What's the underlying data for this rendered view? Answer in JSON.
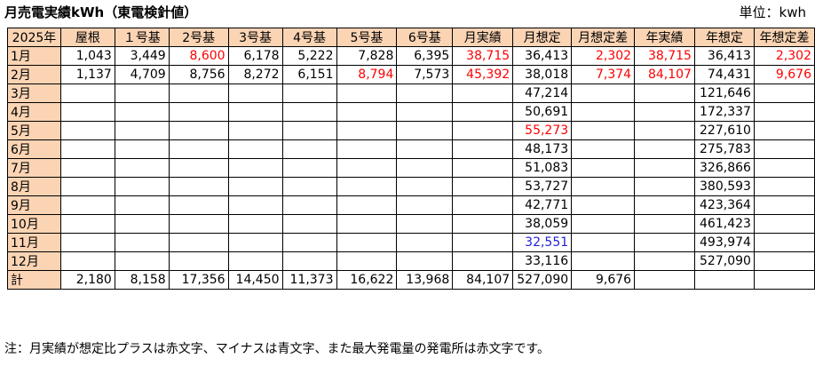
{
  "title": "月売電実績kWh（東電検針値）",
  "unit": "単位：kwh",
  "colors": {
    "header_bg": "#fbd4b4",
    "highlight_red": "#ff0000",
    "highlight_blue": "#1f1fd6"
  },
  "headers": [
    "2025年",
    "屋根",
    "１号基",
    "2号基",
    "3号基",
    "4号基",
    "5号基",
    "6号基",
    "月実績",
    "月想定",
    "月想定差",
    "年実績",
    "年想定",
    "年想定差"
  ],
  "rows": [
    {
      "label": "1月",
      "cells": [
        "1,043",
        "3,449",
        "8,600",
        "6,178",
        "5,222",
        "7,828",
        "6,395",
        "38,715",
        "36,413",
        "2,302",
        "38,715",
        "36,413",
        "2,302"
      ]
    },
    {
      "label": "2月",
      "cells": [
        "1,137",
        "4,709",
        "8,756",
        "8,272",
        "6,151",
        "8,794",
        "7,573",
        "45,392",
        "38,018",
        "7,374",
        "84,107",
        "74,431",
        "9,676"
      ]
    },
    {
      "label": "3月",
      "cells": [
        "",
        "",
        "",
        "",
        "",
        "",
        "",
        "",
        "47,214",
        "",
        "",
        "121,646",
        ""
      ]
    },
    {
      "label": "4月",
      "cells": [
        "",
        "",
        "",
        "",
        "",
        "",
        "",
        "",
        "50,691",
        "",
        "",
        "172,337",
        ""
      ]
    },
    {
      "label": "5月",
      "cells": [
        "",
        "",
        "",
        "",
        "",
        "",
        "",
        "",
        "55,273",
        "",
        "",
        "227,610",
        ""
      ]
    },
    {
      "label": "6月",
      "cells": [
        "",
        "",
        "",
        "",
        "",
        "",
        "",
        "",
        "48,173",
        "",
        "",
        "275,783",
        ""
      ]
    },
    {
      "label": "7月",
      "cells": [
        "",
        "",
        "",
        "",
        "",
        "",
        "",
        "",
        "51,083",
        "",
        "",
        "326,866",
        ""
      ]
    },
    {
      "label": "8月",
      "cells": [
        "",
        "",
        "",
        "",
        "",
        "",
        "",
        "",
        "53,727",
        "",
        "",
        "380,593",
        ""
      ]
    },
    {
      "label": "9月",
      "cells": [
        "",
        "",
        "",
        "",
        "",
        "",
        "",
        "",
        "42,771",
        "",
        "",
        "423,364",
        ""
      ]
    },
    {
      "label": "10月",
      "cells": [
        "",
        "",
        "",
        "",
        "",
        "",
        "",
        "",
        "38,059",
        "",
        "",
        "461,423",
        ""
      ]
    },
    {
      "label": "11月",
      "cells": [
        "",
        "",
        "",
        "",
        "",
        "",
        "",
        "",
        "32,551",
        "",
        "",
        "493,974",
        ""
      ]
    },
    {
      "label": "12月",
      "cells": [
        "",
        "",
        "",
        "",
        "",
        "",
        "",
        "",
        "33,116",
        "",
        "",
        "527,090",
        ""
      ]
    },
    {
      "label": "計",
      "cells": [
        "2,180",
        "8,158",
        "17,356",
        "14,450",
        "11,373",
        "16,622",
        "13,968",
        "84,107",
        "527,090",
        "9,676",
        "",
        "",
        ""
      ]
    }
  ],
  "note": "注：月実績が想定比プラスは赤文字、マイナスは青文字、また最大発電量の発電所は赤文字です。"
}
